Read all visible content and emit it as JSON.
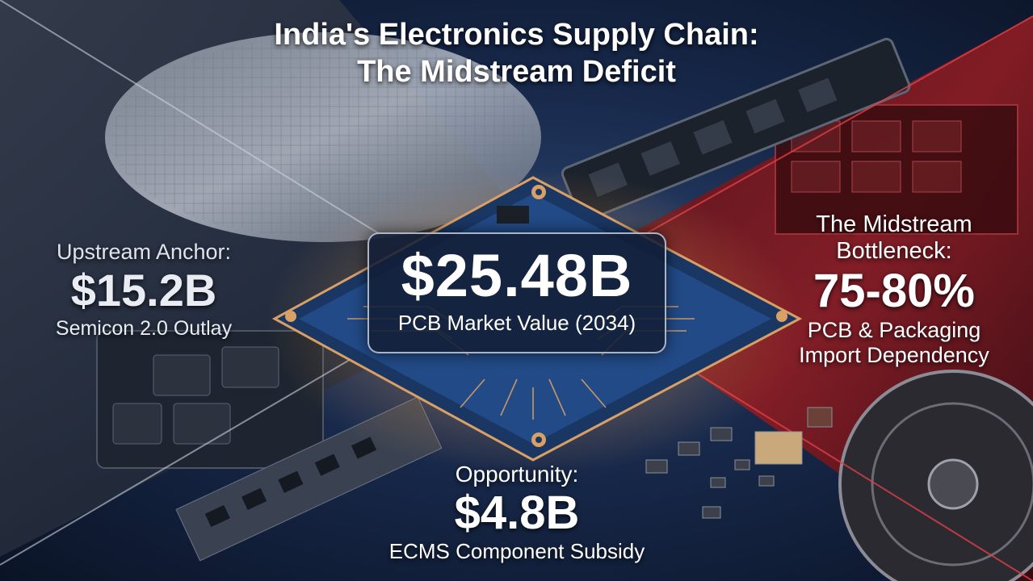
{
  "title": {
    "line1": "India's Electronics Supply Chain:",
    "line2": "The Midstream Deficit"
  },
  "upstream": {
    "label": "Upstream Anchor:",
    "value": "$15.2B",
    "caption": "Semicon 2.0 Outlay"
  },
  "center": {
    "value": "$25.48B",
    "caption": "PCB Market Value (2034)"
  },
  "bottleneck": {
    "label_line1": "The Midstream",
    "label_line2": "Bottleneck:",
    "value": "75-80%",
    "caption_line1": "PCB & Packaging",
    "caption_line2": "Import Dependency"
  },
  "opportunity": {
    "label": "Opportunity:",
    "value": "$4.8B",
    "caption": "ECMS Component Subsidy"
  },
  "colors": {
    "upstream_region": "#2a3442",
    "midstream_region": "#8a1c22",
    "board_blue": "#2f5fa8",
    "trace_copper": "#d9a066",
    "text": "#ffffff"
  }
}
